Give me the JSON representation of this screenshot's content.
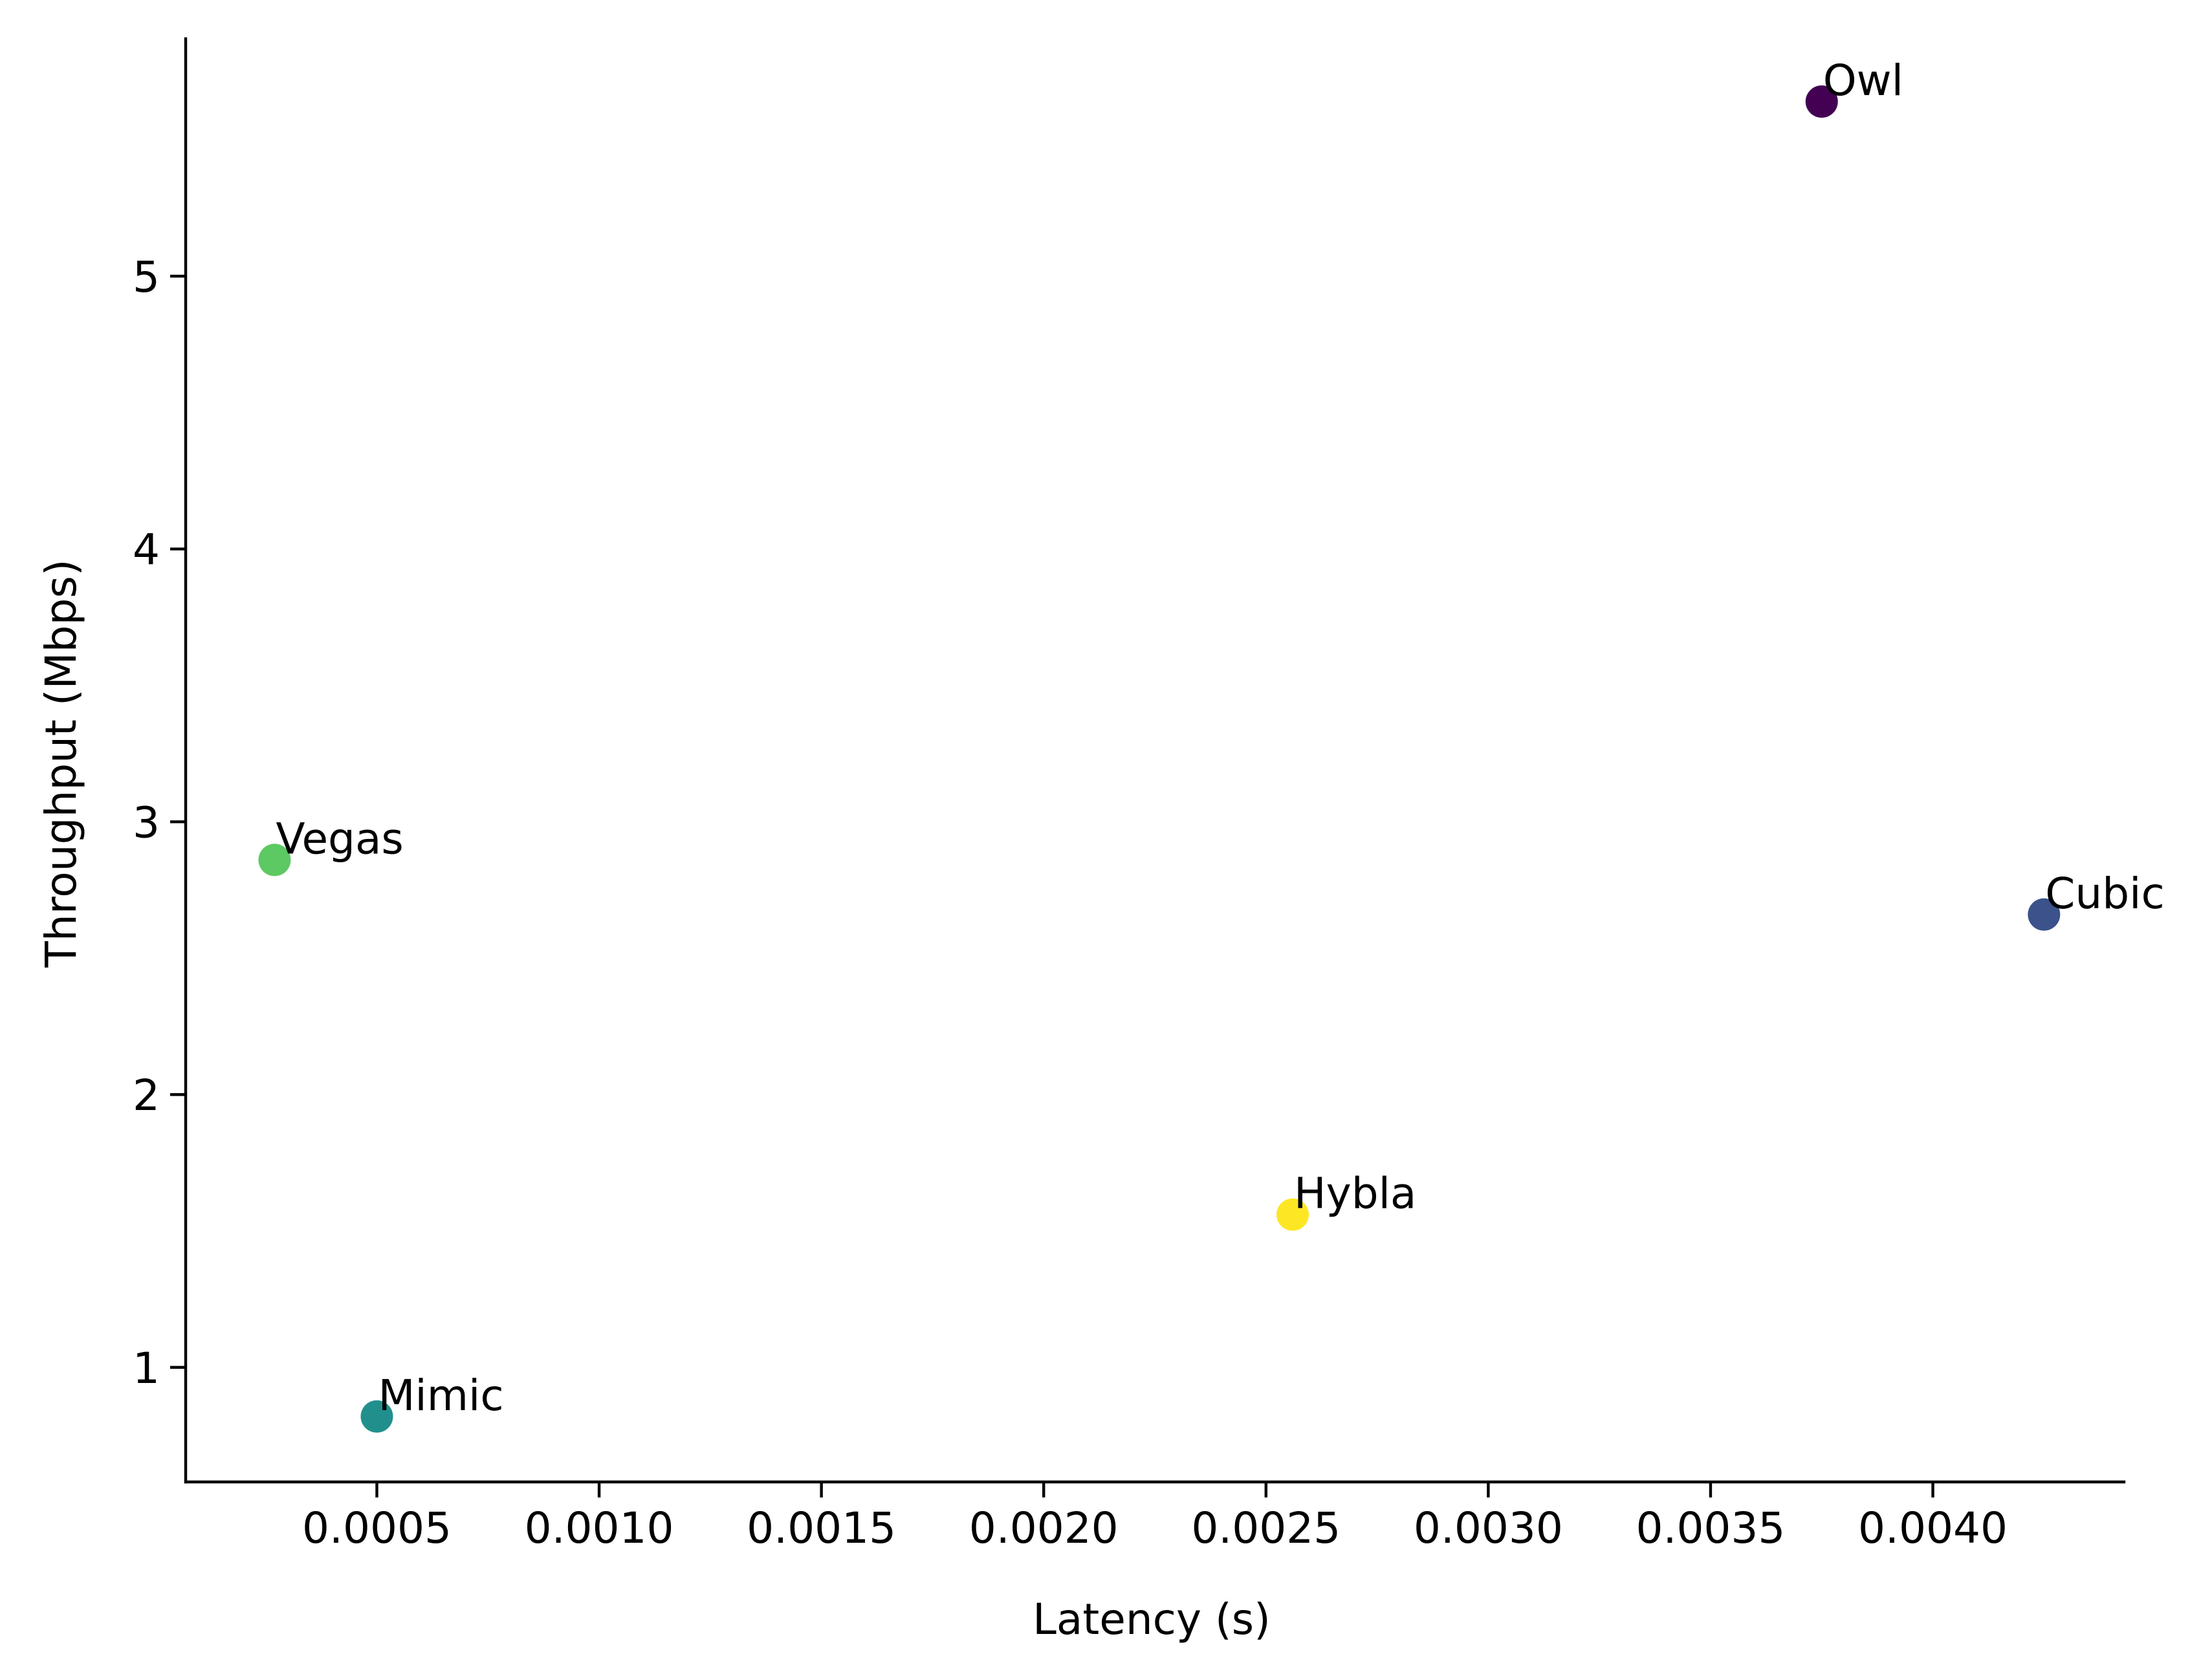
{
  "chart_data": {
    "type": "scatter",
    "title": "",
    "xlabel": "Latency (s)",
    "ylabel": "Throughput (Mbps)",
    "xlim": [
      7e-05,
      0.00443
    ],
    "ylim": [
      0.58,
      5.87
    ],
    "x_ticks": [
      0.0005,
      0.001,
      0.0015,
      0.002,
      0.0025,
      0.003,
      0.0035,
      0.004
    ],
    "x_tick_labels": [
      "0.0005",
      "0.0010",
      "0.0015",
      "0.0020",
      "0.0025",
      "0.0030",
      "0.0035",
      "0.0040"
    ],
    "y_ticks": [
      1,
      2,
      3,
      4,
      5
    ],
    "y_tick_labels": [
      "1",
      "2",
      "3",
      "4",
      "5"
    ],
    "grid": false,
    "points": [
      {
        "label": "Owl",
        "x": 0.00375,
        "y": 5.64,
        "color": "#440154"
      },
      {
        "label": "Cubic",
        "x": 0.00425,
        "y": 2.66,
        "color": "#3b528b"
      },
      {
        "label": "Mimic",
        "x": 0.0005,
        "y": 0.82,
        "color": "#21908d"
      },
      {
        "label": "Vegas",
        "x": 0.00027,
        "y": 2.86,
        "color": "#5dc963"
      },
      {
        "label": "Hybla",
        "x": 0.00256,
        "y": 1.56,
        "color": "#fde725"
      }
    ]
  }
}
